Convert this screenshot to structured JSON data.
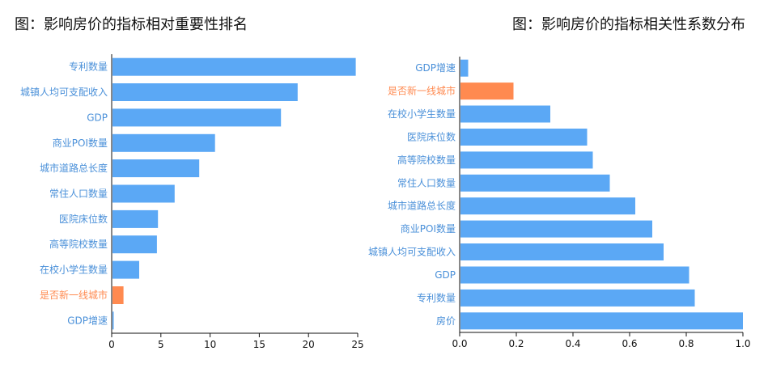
{
  "colors": {
    "bar": "#5BA8F5",
    "highlight": "#FF8A50",
    "label": "#4A90D9",
    "axis": "#111111"
  },
  "chart_data": [
    {
      "type": "bar",
      "orientation": "horizontal",
      "title": "图：影响房价的指标相对重要性排名",
      "categories": [
        "专利数量",
        "城镇人均可支配收入",
        "GDP",
        "商业POI数量",
        "城市道路总长度",
        "常住人口数量",
        "医院床位数",
        "高等院校数量",
        "在校小学生数量",
        "是否新一线城市",
        "GDP增速"
      ],
      "values": [
        24.8,
        18.9,
        17.2,
        10.5,
        8.9,
        6.4,
        4.7,
        4.6,
        2.8,
        1.2,
        0.15
      ],
      "highlight": "是否新一线城市",
      "xlim": [
        0,
        25
      ],
      "xticks": [
        "0",
        "5",
        "10",
        "15",
        "20",
        "25"
      ],
      "xlabel": "",
      "ylabel": ""
    },
    {
      "type": "bar",
      "orientation": "horizontal",
      "title": "图：影响房价的指标相关性系数分布",
      "categories": [
        "GDP增速",
        "是否新一线城市",
        "在校小学生数量",
        "医院床位数",
        "高等院校数量",
        "常住人口数量",
        "城市道路总长度",
        "商业POI数量",
        "城镇人均可支配收入",
        "GDP",
        "专利数量",
        "房价"
      ],
      "values": [
        0.03,
        0.19,
        0.32,
        0.45,
        0.47,
        0.53,
        0.62,
        0.68,
        0.72,
        0.81,
        0.83,
        1.0
      ],
      "highlight": "是否新一线城市",
      "xlim": [
        0,
        1.0
      ],
      "xticks": [
        "0.0",
        "0.2",
        "0.4",
        "0.6",
        "0.8",
        "1.0"
      ],
      "xlabel": "",
      "ylabel": ""
    }
  ]
}
